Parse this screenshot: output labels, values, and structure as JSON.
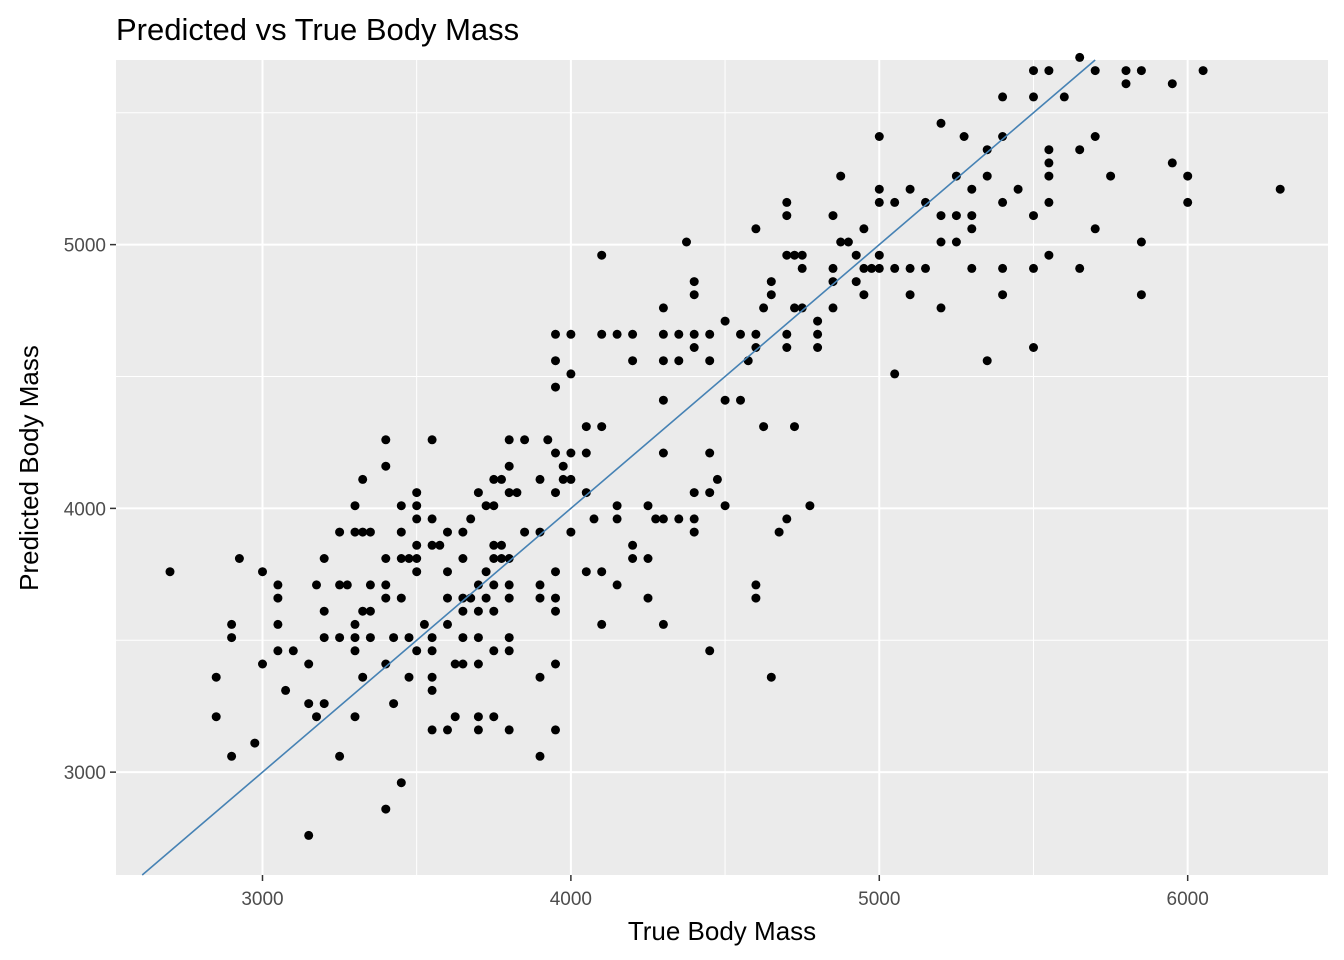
{
  "chart_data": {
    "type": "scatter",
    "title": "Predicted vs True Body Mass",
    "xlabel": "True Body Mass",
    "ylabel": "Predicted Body Mass",
    "xlim": [
      2525,
      6455
    ],
    "ylim": [
      2610,
      5700
    ],
    "xticks": [
      3000,
      4000,
      5000,
      6000
    ],
    "yticks": [
      3000,
      4000,
      5000
    ],
    "grid": true,
    "legend": "none",
    "colors": {
      "panel": "#ebebeb",
      "grid": "#ffffff",
      "points": "#000000",
      "line": "#4682b4",
      "tick_text": "#4d4d4d"
    },
    "reference_line": {
      "slope": 1,
      "intercept": 0
    },
    "points": [
      [
        2700,
        3760
      ],
      [
        2850,
        3360
      ],
      [
        2850,
        3210
      ],
      [
        2900,
        3560
      ],
      [
        2900,
        3510
      ],
      [
        2900,
        3060
      ],
      [
        2925,
        3810
      ],
      [
        2975,
        3110
      ],
      [
        3000,
        3760
      ],
      [
        3000,
        3410
      ],
      [
        3050,
        3710
      ],
      [
        3050,
        3660
      ],
      [
        3050,
        3560
      ],
      [
        3050,
        3460
      ],
      [
        3075,
        3310
      ],
      [
        3100,
        3460
      ],
      [
        3150,
        3410
      ],
      [
        3150,
        3260
      ],
      [
        3150,
        2760
      ],
      [
        3175,
        3710
      ],
      [
        3175,
        3210
      ],
      [
        3200,
        3810
      ],
      [
        3200,
        3610
      ],
      [
        3200,
        3510
      ],
      [
        3200,
        3260
      ],
      [
        3250,
        3910
      ],
      [
        3250,
        3710
      ],
      [
        3250,
        3510
      ],
      [
        3250,
        3060
      ],
      [
        3275,
        3710
      ],
      [
        3300,
        4010
      ],
      [
        3300,
        3910
      ],
      [
        3300,
        3560
      ],
      [
        3300,
        3510
      ],
      [
        3300,
        3460
      ],
      [
        3300,
        3210
      ],
      [
        3325,
        4110
      ],
      [
        3325,
        3910
      ],
      [
        3325,
        3610
      ],
      [
        3325,
        3360
      ],
      [
        3350,
        3910
      ],
      [
        3350,
        3710
      ],
      [
        3350,
        3610
      ],
      [
        3350,
        3510
      ],
      [
        3400,
        4260
      ],
      [
        3400,
        4160
      ],
      [
        3400,
        3810
      ],
      [
        3400,
        3710
      ],
      [
        3400,
        3660
      ],
      [
        3400,
        3410
      ],
      [
        3400,
        2860
      ],
      [
        3425,
        3260
      ],
      [
        3425,
        3510
      ],
      [
        3450,
        4010
      ],
      [
        3450,
        3910
      ],
      [
        3450,
        3810
      ],
      [
        3450,
        3660
      ],
      [
        3450,
        2960
      ],
      [
        3475,
        3810
      ],
      [
        3475,
        3510
      ],
      [
        3475,
        3360
      ],
      [
        3500,
        4060
      ],
      [
        3500,
        4010
      ],
      [
        3500,
        3960
      ],
      [
        3500,
        3860
      ],
      [
        3500,
        3810
      ],
      [
        3500,
        3760
      ],
      [
        3500,
        3460
      ],
      [
        3525,
        3560
      ],
      [
        3550,
        4260
      ],
      [
        3550,
        3960
      ],
      [
        3550,
        3860
      ],
      [
        3550,
        3510
      ],
      [
        3550,
        3460
      ],
      [
        3550,
        3360
      ],
      [
        3550,
        3310
      ],
      [
        3550,
        3160
      ],
      [
        3575,
        3860
      ],
      [
        3600,
        3760
      ],
      [
        3600,
        3660
      ],
      [
        3600,
        3560
      ],
      [
        3600,
        3160
      ],
      [
        3600,
        3910
      ],
      [
        3625,
        3410
      ],
      [
        3625,
        3210
      ],
      [
        3650,
        3910
      ],
      [
        3650,
        3810
      ],
      [
        3650,
        3660
      ],
      [
        3650,
        3610
      ],
      [
        3650,
        3510
      ],
      [
        3650,
        3410
      ],
      [
        3675,
        3960
      ],
      [
        3675,
        3660
      ],
      [
        3700,
        4060
      ],
      [
        3700,
        3710
      ],
      [
        3700,
        3610
      ],
      [
        3700,
        3510
      ],
      [
        3700,
        3410
      ],
      [
        3700,
        3210
      ],
      [
        3700,
        3160
      ],
      [
        3725,
        4010
      ],
      [
        3725,
        3760
      ],
      [
        3725,
        3660
      ],
      [
        3750,
        4110
      ],
      [
        3750,
        4010
      ],
      [
        3750,
        3860
      ],
      [
        3750,
        3810
      ],
      [
        3750,
        3710
      ],
      [
        3750,
        3610
      ],
      [
        3750,
        3460
      ],
      [
        3750,
        3210
      ],
      [
        3775,
        4110
      ],
      [
        3775,
        3860
      ],
      [
        3775,
        3810
      ],
      [
        3800,
        4260
      ],
      [
        3800,
        4160
      ],
      [
        3800,
        4060
      ],
      [
        3800,
        3810
      ],
      [
        3800,
        3710
      ],
      [
        3800,
        3660
      ],
      [
        3800,
        3510
      ],
      [
        3800,
        3460
      ],
      [
        3800,
        3160
      ],
      [
        3825,
        4060
      ],
      [
        3850,
        4260
      ],
      [
        3850,
        3910
      ],
      [
        3900,
        4110
      ],
      [
        3900,
        3910
      ],
      [
        3900,
        3710
      ],
      [
        3900,
        3660
      ],
      [
        3900,
        3360
      ],
      [
        3900,
        3060
      ],
      [
        3925,
        4260
      ],
      [
        3950,
        4660
      ],
      [
        3950,
        4560
      ],
      [
        3950,
        4460
      ],
      [
        3950,
        4210
      ],
      [
        3950,
        4060
      ],
      [
        3950,
        3760
      ],
      [
        3950,
        3660
      ],
      [
        3950,
        3610
      ],
      [
        3950,
        3410
      ],
      [
        3950,
        3160
      ],
      [
        3975,
        4160
      ],
      [
        3975,
        4110
      ],
      [
        4000,
        4660
      ],
      [
        4000,
        4510
      ],
      [
        4000,
        4210
      ],
      [
        4000,
        4110
      ],
      [
        4000,
        3910
      ],
      [
        4050,
        4210
      ],
      [
        4050,
        4060
      ],
      [
        4050,
        3760
      ],
      [
        4050,
        4310
      ],
      [
        4075,
        3960
      ],
      [
        4100,
        4960
      ],
      [
        4100,
        4660
      ],
      [
        4100,
        4310
      ],
      [
        4100,
        3760
      ],
      [
        4100,
        3560
      ],
      [
        4150,
        4660
      ],
      [
        4150,
        4010
      ],
      [
        4150,
        3960
      ],
      [
        4150,
        3710
      ],
      [
        4200,
        4660
      ],
      [
        4200,
        4560
      ],
      [
        4200,
        3860
      ],
      [
        4200,
        3810
      ],
      [
        4250,
        4010
      ],
      [
        4250,
        3810
      ],
      [
        4250,
        3660
      ],
      [
        4275,
        3960
      ],
      [
        4300,
        4760
      ],
      [
        4300,
        4660
      ],
      [
        4300,
        4560
      ],
      [
        4300,
        4410
      ],
      [
        4300,
        4210
      ],
      [
        4300,
        3960
      ],
      [
        4300,
        3560
      ],
      [
        4350,
        4660
      ],
      [
        4350,
        4560
      ],
      [
        4350,
        3960
      ],
      [
        4375,
        5010
      ],
      [
        4400,
        4860
      ],
      [
        4400,
        4810
      ],
      [
        4400,
        4660
      ],
      [
        4400,
        4610
      ],
      [
        4400,
        4060
      ],
      [
        4400,
        3960
      ],
      [
        4400,
        3910
      ],
      [
        4450,
        4660
      ],
      [
        4450,
        4560
      ],
      [
        4450,
        4210
      ],
      [
        4450,
        4060
      ],
      [
        4450,
        3460
      ],
      [
        4475,
        4110
      ],
      [
        4500,
        4710
      ],
      [
        4500,
        4410
      ],
      [
        4500,
        4010
      ],
      [
        4550,
        4660
      ],
      [
        4550,
        4410
      ],
      [
        4575,
        4560
      ],
      [
        4600,
        5060
      ],
      [
        4600,
        4660
      ],
      [
        4600,
        4610
      ],
      [
        4600,
        3710
      ],
      [
        4600,
        3660
      ],
      [
        4625,
        4760
      ],
      [
        4625,
        4310
      ],
      [
        4650,
        4860
      ],
      [
        4650,
        4810
      ],
      [
        4650,
        3360
      ],
      [
        4675,
        3910
      ],
      [
        4700,
        5160
      ],
      [
        4700,
        5110
      ],
      [
        4700,
        4960
      ],
      [
        4700,
        4660
      ],
      [
        4700,
        4610
      ],
      [
        4700,
        3960
      ],
      [
        4725,
        4960
      ],
      [
        4725,
        4760
      ],
      [
        4725,
        4310
      ],
      [
        4750,
        4960
      ],
      [
        4750,
        4910
      ],
      [
        4750,
        4760
      ],
      [
        4775,
        4010
      ],
      [
        4800,
        4710
      ],
      [
        4800,
        4660
      ],
      [
        4800,
        4610
      ],
      [
        4850,
        5110
      ],
      [
        4850,
        4910
      ],
      [
        4850,
        4860
      ],
      [
        4850,
        4760
      ],
      [
        4875,
        5260
      ],
      [
        4875,
        5010
      ],
      [
        4900,
        5010
      ],
      [
        4925,
        4960
      ],
      [
        4925,
        4860
      ],
      [
        4950,
        5060
      ],
      [
        4950,
        4910
      ],
      [
        4950,
        4810
      ],
      [
        4975,
        4910
      ],
      [
        5000,
        5410
      ],
      [
        5000,
        5210
      ],
      [
        5000,
        5160
      ],
      [
        5000,
        4960
      ],
      [
        5000,
        4910
      ],
      [
        5050,
        5160
      ],
      [
        5050,
        4910
      ],
      [
        5050,
        4510
      ],
      [
        5100,
        5210
      ],
      [
        5100,
        4910
      ],
      [
        5100,
        4810
      ],
      [
        5150,
        5160
      ],
      [
        5150,
        4910
      ],
      [
        5200,
        5460
      ],
      [
        5200,
        5110
      ],
      [
        5200,
        5010
      ],
      [
        5200,
        4760
      ],
      [
        5250,
        5260
      ],
      [
        5250,
        5110
      ],
      [
        5250,
        5010
      ],
      [
        5275,
        5410
      ],
      [
        5300,
        5210
      ],
      [
        5300,
        5110
      ],
      [
        5300,
        5060
      ],
      [
        5300,
        4910
      ],
      [
        5350,
        5360
      ],
      [
        5350,
        5260
      ],
      [
        5350,
        4560
      ],
      [
        5400,
        5560
      ],
      [
        5400,
        5410
      ],
      [
        5400,
        5160
      ],
      [
        5400,
        4910
      ],
      [
        5400,
        4810
      ],
      [
        5450,
        5210
      ],
      [
        5500,
        5660
      ],
      [
        5500,
        5560
      ],
      [
        5500,
        5110
      ],
      [
        5500,
        4910
      ],
      [
        5500,
        4610
      ],
      [
        5550,
        5660
      ],
      [
        5550,
        5360
      ],
      [
        5550,
        5310
      ],
      [
        5550,
        5260
      ],
      [
        5550,
        5160
      ],
      [
        5550,
        4960
      ],
      [
        5600,
        5560
      ],
      [
        5650,
        5710
      ],
      [
        5650,
        5360
      ],
      [
        5650,
        4910
      ],
      [
        5700,
        5660
      ],
      [
        5700,
        5410
      ],
      [
        5700,
        5060
      ],
      [
        5750,
        5260
      ],
      [
        5800,
        5660
      ],
      [
        5800,
        5610
      ],
      [
        5850,
        5660
      ],
      [
        5850,
        5010
      ],
      [
        5850,
        4810
      ],
      [
        5950,
        5610
      ],
      [
        5950,
        5310
      ],
      [
        6000,
        5260
      ],
      [
        6000,
        5160
      ],
      [
        6050,
        5660
      ],
      [
        6300,
        5210
      ]
    ]
  }
}
